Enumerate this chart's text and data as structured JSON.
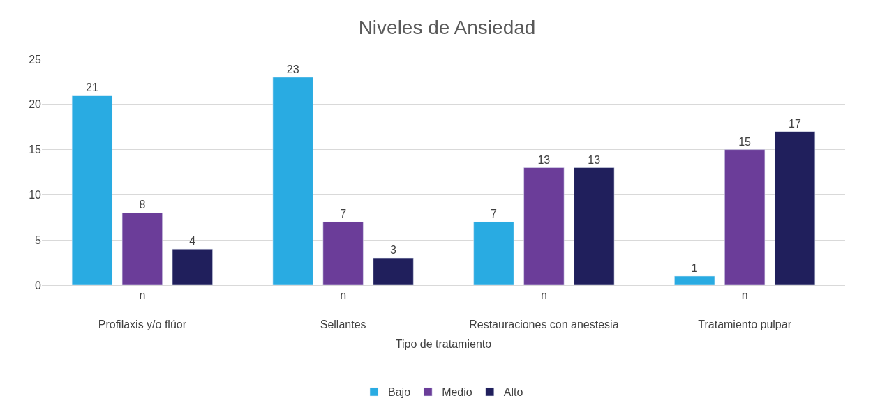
{
  "chart_data": {
    "type": "bar",
    "title": "Niveles de Ansiedad",
    "xlabel": "Tipo de tratamiento",
    "categories": [
      "n\nProfilaxis y/o flúor",
      "n\nSellantes",
      "n\nRestauraciones con anestesia",
      "n\nTratamiento pulpar"
    ],
    "series": [
      {
        "name": "Bajo",
        "color": "#29abe2",
        "values": [
          21,
          23,
          7,
          1
        ]
      },
      {
        "name": "Medio",
        "color": "#6b3d99",
        "values": [
          8,
          7,
          13,
          15
        ]
      },
      {
        "name": "Alto",
        "color": "#201f5c",
        "values": [
          4,
          3,
          13,
          17
        ]
      }
    ],
    "ylim": [
      0,
      25
    ],
    "yticks": [
      0,
      5,
      10,
      15,
      20,
      25
    ],
    "grid": "y",
    "legend": "bottom",
    "data_labels": true
  }
}
